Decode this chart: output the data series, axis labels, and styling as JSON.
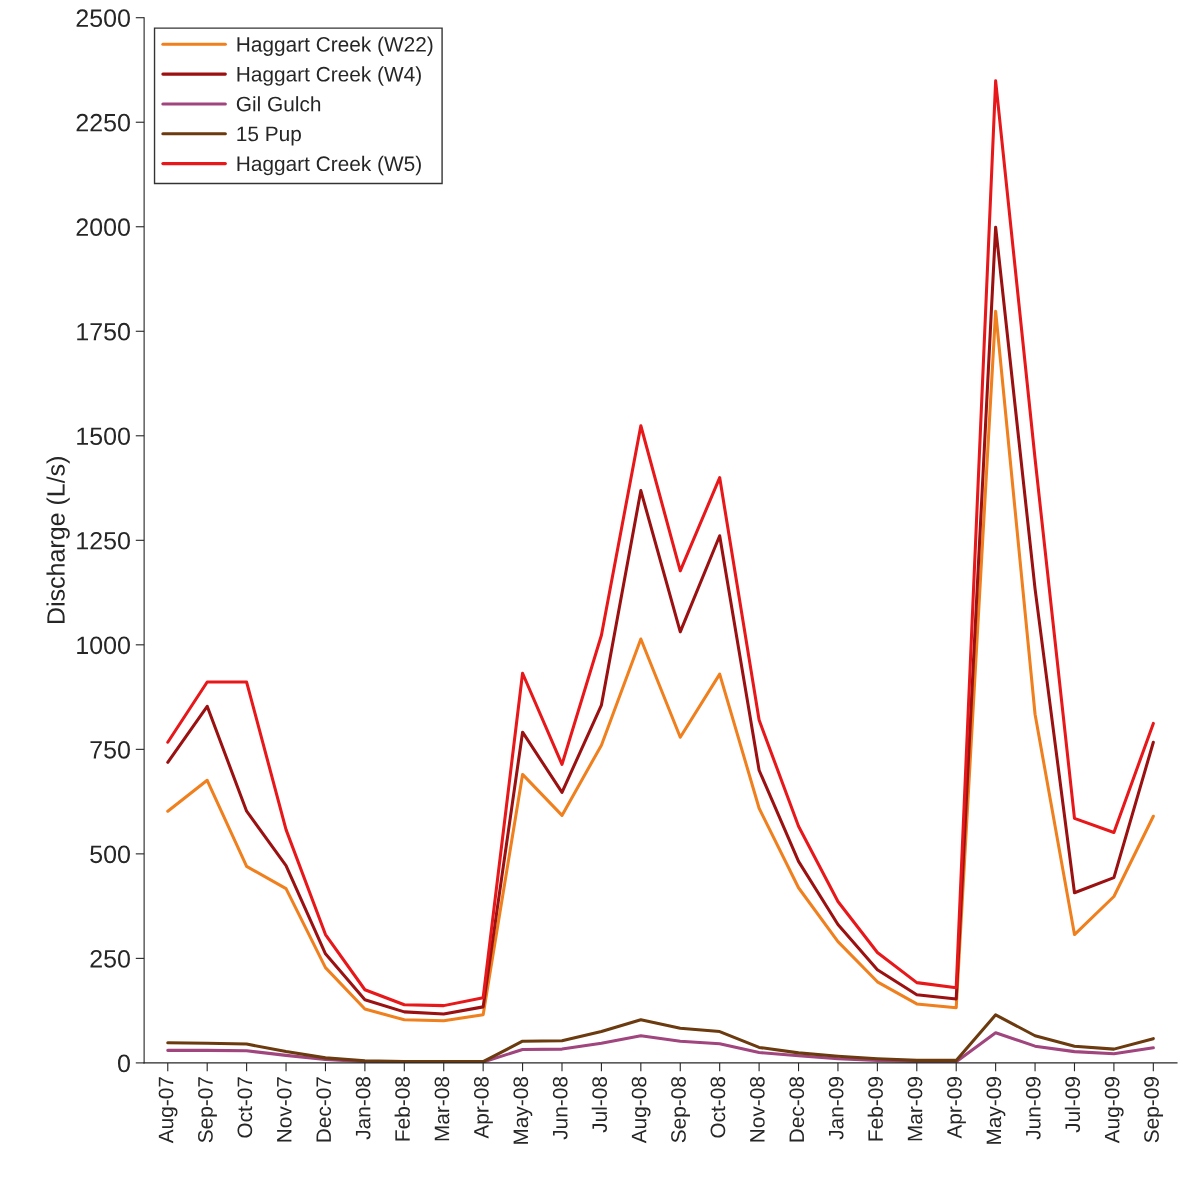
{
  "chart_data": {
    "type": "line",
    "ylabel": "Discharge (L/s)",
    "categories": [
      "Aug-07",
      "Sep-07",
      "Oct-07",
      "Nov-07",
      "Dec-07",
      "Jan-08",
      "Feb-08",
      "Mar-08",
      "Apr-08",
      "May-08",
      "Jun-08",
      "Jul-08",
      "Aug-08",
      "Sep-08",
      "Oct-08",
      "Nov-08",
      "Dec-08",
      "Jan-09",
      "Feb-09",
      "Mar-09",
      "Apr-09",
      "May-09",
      "Jun-09",
      "Jul-09",
      "Aug-09",
      "Sep-09"
    ],
    "series": [
      {
        "name": "Haggart Creek (W22)",
        "color": "#f07f1e",
        "values": [
          602,
          676,
          470,
          417,
          228,
          129,
          103,
          101,
          115,
          690,
          592,
          760,
          1014,
          779,
          930,
          609,
          419,
          290,
          194,
          141,
          132,
          1798,
          834,
          307,
          398,
          590
        ]
      },
      {
        "name": "Haggart Creek (W4)",
        "color": "#9b1111",
        "values": [
          719,
          853,
          602,
          472,
          261,
          151,
          122,
          117,
          134,
          791,
          647,
          856,
          1369,
          1031,
          1261,
          700,
          482,
          331,
          223,
          163,
          153,
          1999,
          1134,
          407,
          443,
          767
        ]
      },
      {
        "name": "Gil Gulch",
        "color": "#a0457e",
        "values": [
          30,
          30,
          29,
          18,
          8,
          3,
          2,
          2,
          2,
          32,
          33,
          47,
          65,
          52,
          46,
          25,
          17,
          10,
          6,
          3,
          3,
          72,
          40,
          27,
          22,
          36
        ]
      },
      {
        "name": "15 Pup",
        "color": "#6b3a0e",
        "values": [
          48,
          47,
          45,
          27,
          12,
          5,
          3,
          3,
          3,
          52,
          53,
          75,
          103,
          83,
          75,
          37,
          24,
          16,
          10,
          6,
          6,
          115,
          65,
          40,
          33,
          58
        ]
      },
      {
        "name": "Haggart Creek (W5)",
        "color": "#e8171a",
        "values": [
          767,
          911,
          911,
          558,
          307,
          175,
          139,
          137,
          156,
          932,
          714,
          1023,
          1524,
          1177,
          1400,
          820,
          566,
          386,
          264,
          192,
          180,
          2349,
          1445,
          585,
          551,
          812
        ]
      }
    ],
    "ylim": [
      0,
      2500
    ],
    "yticks": [
      0,
      250,
      500,
      750,
      1000,
      1250,
      1500,
      1750,
      2000,
      2250,
      2500
    ],
    "legend": "top left",
    "grid": false,
    "marker": "none",
    "line_style": "solid"
  }
}
